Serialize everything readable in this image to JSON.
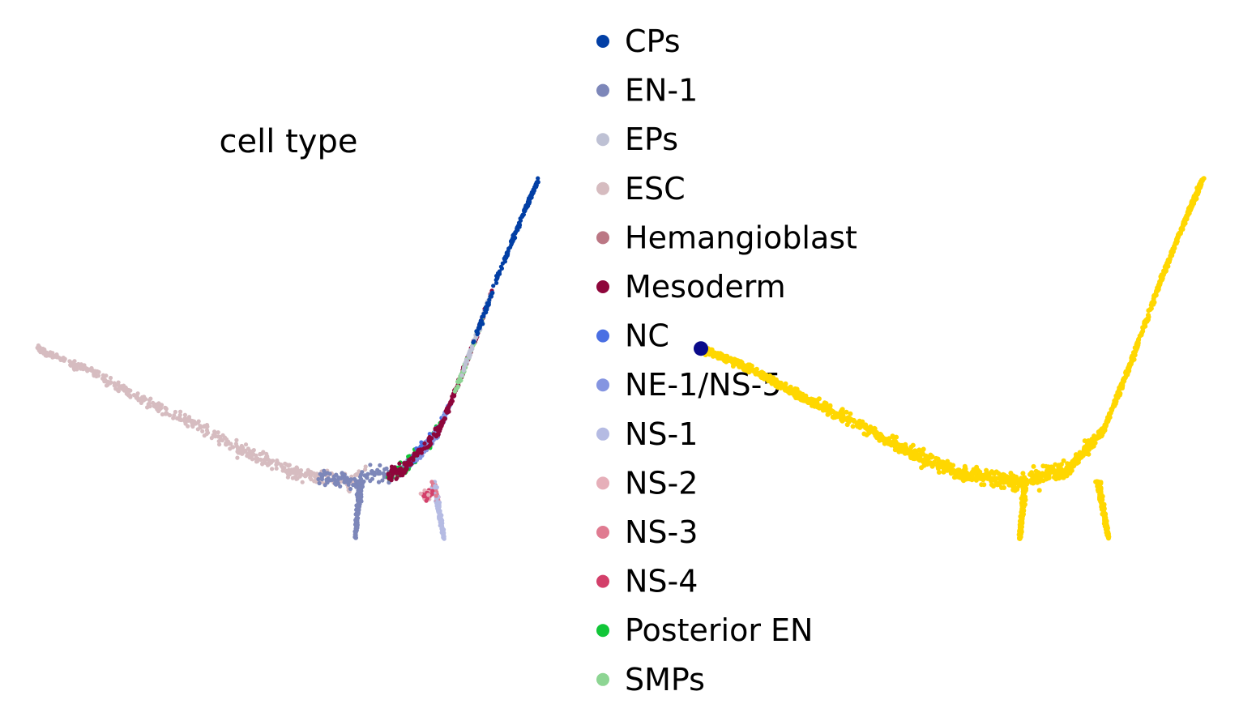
{
  "chart_data": [
    {
      "type": "scatter",
      "title": "cell type",
      "xlabel": "",
      "ylabel": "",
      "axes_visible": false,
      "grid": false,
      "legend_placement": "right",
      "legend": [
        {
          "name": "CPs",
          "color": "#023fa5"
        },
        {
          "name": "EN-1",
          "color": "#7d87b9"
        },
        {
          "name": "EPs",
          "color": "#bec1d4"
        },
        {
          "name": "ESC",
          "color": "#d6bcc0"
        },
        {
          "name": "Hemangioblast",
          "color": "#bb7784"
        },
        {
          "name": "Mesoderm",
          "color": "#8e063b"
        },
        {
          "name": "NC",
          "color": "#4a6fe3"
        },
        {
          "name": "NE-1/NS-5",
          "color": "#8595e1"
        },
        {
          "name": "NS-1",
          "color": "#b5bbe3"
        },
        {
          "name": "NS-2",
          "color": "#e6afb9"
        },
        {
          "name": "NS-3",
          "color": "#e07b91"
        },
        {
          "name": "NS-4",
          "color": "#d33f6a"
        },
        {
          "name": "Posterior EN",
          "color": "#11c638"
        },
        {
          "name": "SMPs",
          "color": "#8dd593"
        }
      ],
      "trajectory": [
        {
          "x": 0.0,
          "y": 0.53
        },
        {
          "x": 0.1,
          "y": 0.47
        },
        {
          "x": 0.2,
          "y": 0.39
        },
        {
          "x": 0.3,
          "y": 0.32
        },
        {
          "x": 0.4,
          "y": 0.24
        },
        {
          "x": 0.5,
          "y": 0.18
        },
        {
          "x": 0.6,
          "y": 0.16
        },
        {
          "x": 0.7,
          "y": 0.19
        },
        {
          "x": 0.77,
          "y": 0.3
        },
        {
          "x": 0.82,
          "y": 0.48
        },
        {
          "x": 0.88,
          "y": 0.72
        },
        {
          "x": 0.93,
          "y": 0.9
        },
        {
          "x": 0.96,
          "y": 1.0
        }
      ],
      "branches": [
        {
          "from": {
            "x": 0.62,
            "y": 0.16
          },
          "to": {
            "x": 0.61,
            "y": 0.0
          }
        },
        {
          "from": {
            "x": 0.76,
            "y": 0.16
          },
          "to": {
            "x": 0.78,
            "y": 0.0
          }
        }
      ],
      "segments": [
        {
          "cell_type": "ESC",
          "t_start": 0.0,
          "t_end": 0.52
        },
        {
          "cell_type": "EN-1",
          "t_start": 0.45,
          "t_end": 0.62
        },
        {
          "cell_type": "Posterior EN",
          "t_start": 0.56,
          "t_end": 0.66
        },
        {
          "cell_type": "NC",
          "t_start": 0.6,
          "t_end": 0.7
        },
        {
          "cell_type": "NE-1/NS-5",
          "t_start": 0.62,
          "t_end": 0.7
        },
        {
          "cell_type": "Mesoderm",
          "t_start": 0.56,
          "t_end": 0.82
        },
        {
          "cell_type": "SMPs",
          "t_start": 0.72,
          "t_end": 0.8
        },
        {
          "cell_type": "EPs",
          "t_start": 0.74,
          "t_end": 0.82
        },
        {
          "cell_type": "CPs",
          "t_start": 0.78,
          "t_end": 1.0
        }
      ]
    },
    {
      "type": "scatter",
      "title": "",
      "axes_visible": false,
      "grid": false,
      "point_color": "#ffd700",
      "highlight_point": {
        "x": 0.0,
        "y": 0.53,
        "color": "#0a0a8a"
      },
      "same_embedding_as_left": true
    }
  ]
}
